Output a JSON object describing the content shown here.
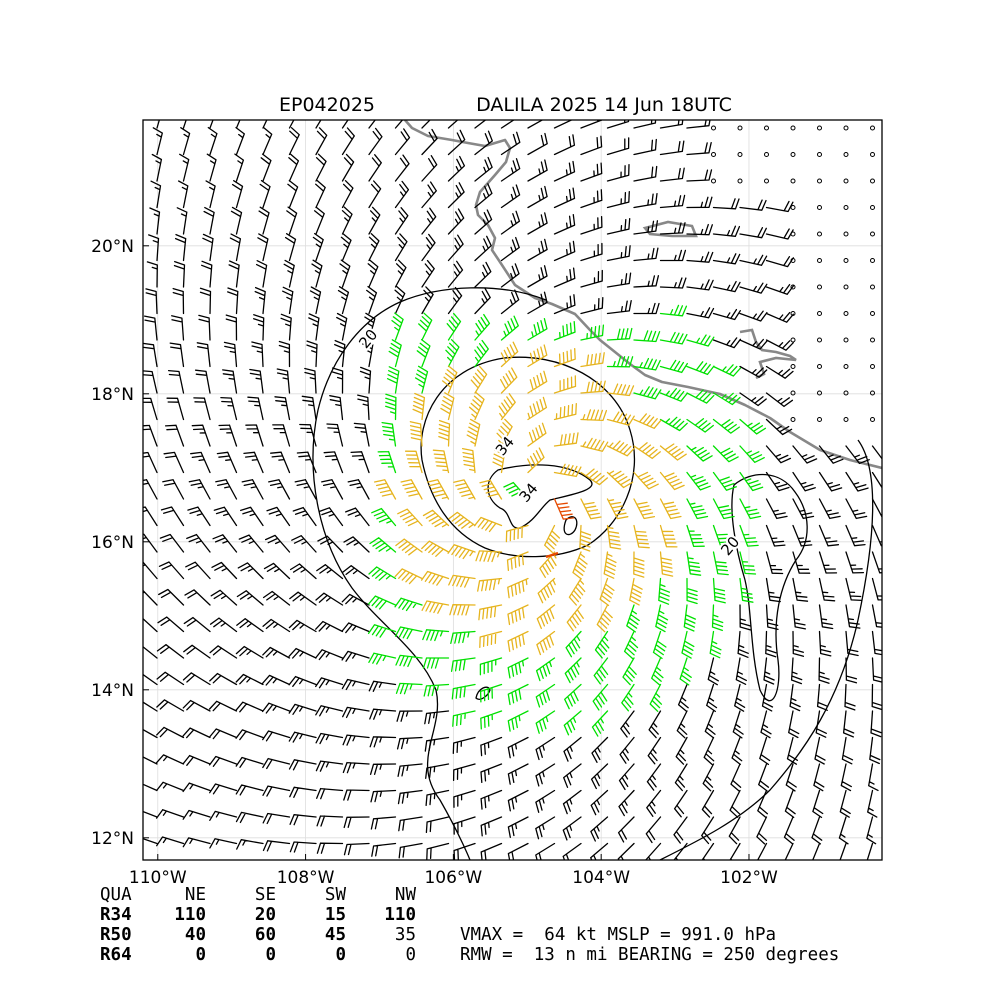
{
  "title": {
    "storm_id": "EP042025",
    "storm_name_time": "DALILA 2025 14 Jun 18UTC"
  },
  "map": {
    "lon_range": [
      -110.2,
      -100.2
    ],
    "lat_range": [
      11.7,
      21.7
    ],
    "center": {
      "lon": -104.9,
      "lat": 16.6
    },
    "x_ticks": [
      {
        "lon": -110,
        "label": "110°W"
      },
      {
        "lon": -108,
        "label": "108°W"
      },
      {
        "lon": -106,
        "label": "106°W"
      },
      {
        "lon": -104,
        "label": "104°W"
      },
      {
        "lon": -102,
        "label": "102°W"
      }
    ],
    "y_ticks": [
      {
        "lat": 12,
        "label": "12°N"
      },
      {
        "lat": 14,
        "label": "14°N"
      },
      {
        "lat": 16,
        "label": "16°N"
      },
      {
        "lat": 18,
        "label": "18°N"
      },
      {
        "lat": 20,
        "label": "20°N"
      }
    ],
    "contour_labels": [
      {
        "text": "20",
        "lon": -107.1,
        "lat": 18.7
      },
      {
        "text": "34",
        "lon": -105.25,
        "lat": 17.25
      },
      {
        "text": "34",
        "lon": -104.93,
        "lat": 16.62
      },
      {
        "text": "20",
        "lon": -102.2,
        "lat": 15.9
      }
    ],
    "colors": {
      "land": "#888888",
      "barb_weak": "#000000",
      "barb_34kt": "#00e000",
      "barb_50kt": "#e6b41e",
      "barb_64kt": "#e64a00",
      "contour": "#000000",
      "grid": "#dddddd"
    }
  },
  "table": {
    "header": [
      "QUA",
      "NE",
      "SE",
      "SW",
      "NW"
    ],
    "rows": [
      {
        "label": "R34",
        "values": [
          "110",
          "20",
          "15",
          "110"
        ]
      },
      {
        "label": "R50",
        "values": [
          "40",
          "60",
          "45",
          "35"
        ]
      },
      {
        "label": "R64",
        "values": [
          "0",
          "0",
          "0",
          "0"
        ]
      }
    ]
  },
  "stats": {
    "line1": "VMAX =  64 kt MSLP = 991.0 hPa",
    "line2": "RMW =  13 n mi BEARING = 250 degrees"
  }
}
